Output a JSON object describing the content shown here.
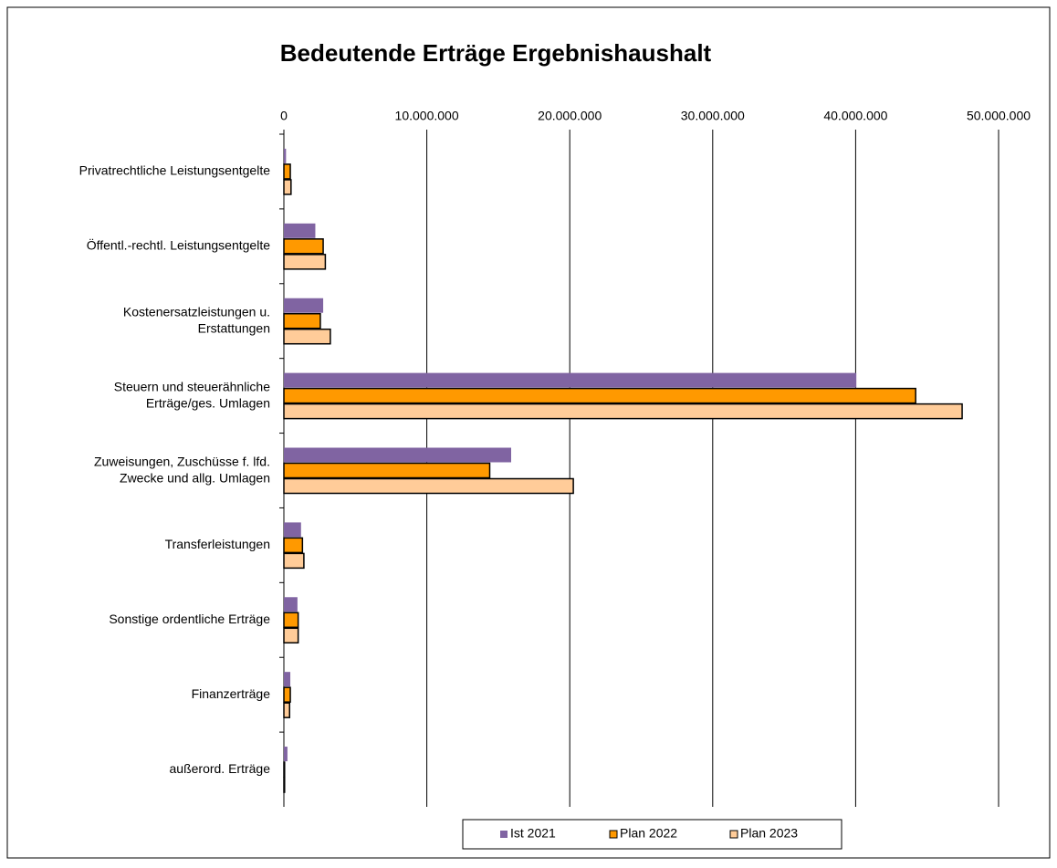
{
  "chart_data": {
    "type": "hbar",
    "title": "Bedeutende Erträge Ergebnishaushalt",
    "categories": [
      "Privatrechtliche Leistungsentgelte",
      "Öffentl.-rechtl. Leistungsentgelte",
      "Kostenersatzleistungen u.\nErstattungen",
      "Steuern und steuerähnliche\nErträge/ges. Umlagen",
      "Zuweisungen, Zuschüsse f. lfd.\nZwecke und allg. Umlagen",
      "Transferleistungen",
      "Sonstige ordentliche Erträge",
      "Finanzerträge",
      "außerord. Erträge"
    ],
    "series": [
      {
        "name": "Ist 2021",
        "color": "#8064a2",
        "values": [
          150000,
          2200000,
          2750000,
          40050000,
          15900000,
          1200000,
          950000,
          450000,
          250000
        ]
      },
      {
        "name": "Plan 2022",
        "color": "#ff9900",
        "values": [
          450000,
          2750000,
          2550000,
          44200000,
          14400000,
          1300000,
          1000000,
          450000,
          50000
        ]
      },
      {
        "name": "Plan 2023",
        "color": "#ffcc99",
        "values": [
          500000,
          2900000,
          3250000,
          47450000,
          20250000,
          1400000,
          1000000,
          400000,
          50000
        ]
      }
    ],
    "xlim": [
      0,
      50000000
    ],
    "xticks": [
      0,
      {
        "value": 10000000,
        "label": "10.000.000"
      },
      {
        "value": 20000000,
        "label": "20.000.000"
      },
      {
        "value": 30000000,
        "label": "30.000.000"
      },
      {
        "value": 40000000,
        "label": "40.000.000"
      },
      {
        "value": 50000000,
        "label": "50.000.000"
      }
    ],
    "grid": true,
    "legend": "bottom"
  }
}
